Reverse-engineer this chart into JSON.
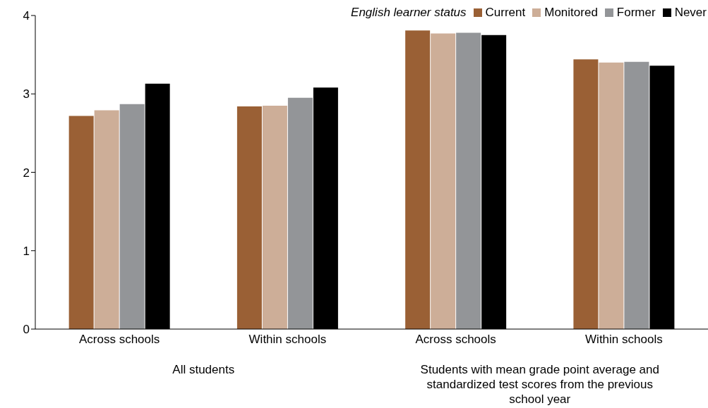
{
  "chart_data": {
    "type": "bar",
    "legend_title": "English learner status",
    "legend": "top right",
    "grid": false,
    "categories": [
      "Across schools",
      "Within schools",
      "Across schools",
      "Within schools"
    ],
    "annotations": [
      "All students",
      "Students with mean grade point average and standardized test scores from the previous school year"
    ],
    "series": [
      {
        "name": "Current",
        "color": "#9a6035",
        "values": [
          2.72,
          2.84,
          3.81,
          3.44
        ]
      },
      {
        "name": "Monitored",
        "color": "#cdae98",
        "values": [
          2.79,
          2.85,
          3.77,
          3.4
        ]
      },
      {
        "name": "Former",
        "color": "#939598",
        "values": [
          2.87,
          2.95,
          3.78,
          3.41
        ]
      },
      {
        "name": "Never",
        "color": "#000000",
        "values": [
          3.13,
          3.08,
          3.75,
          3.36
        ]
      }
    ],
    "ylim": [
      0,
      4
    ],
    "yticks": [
      0,
      1,
      2,
      3,
      4
    ]
  }
}
